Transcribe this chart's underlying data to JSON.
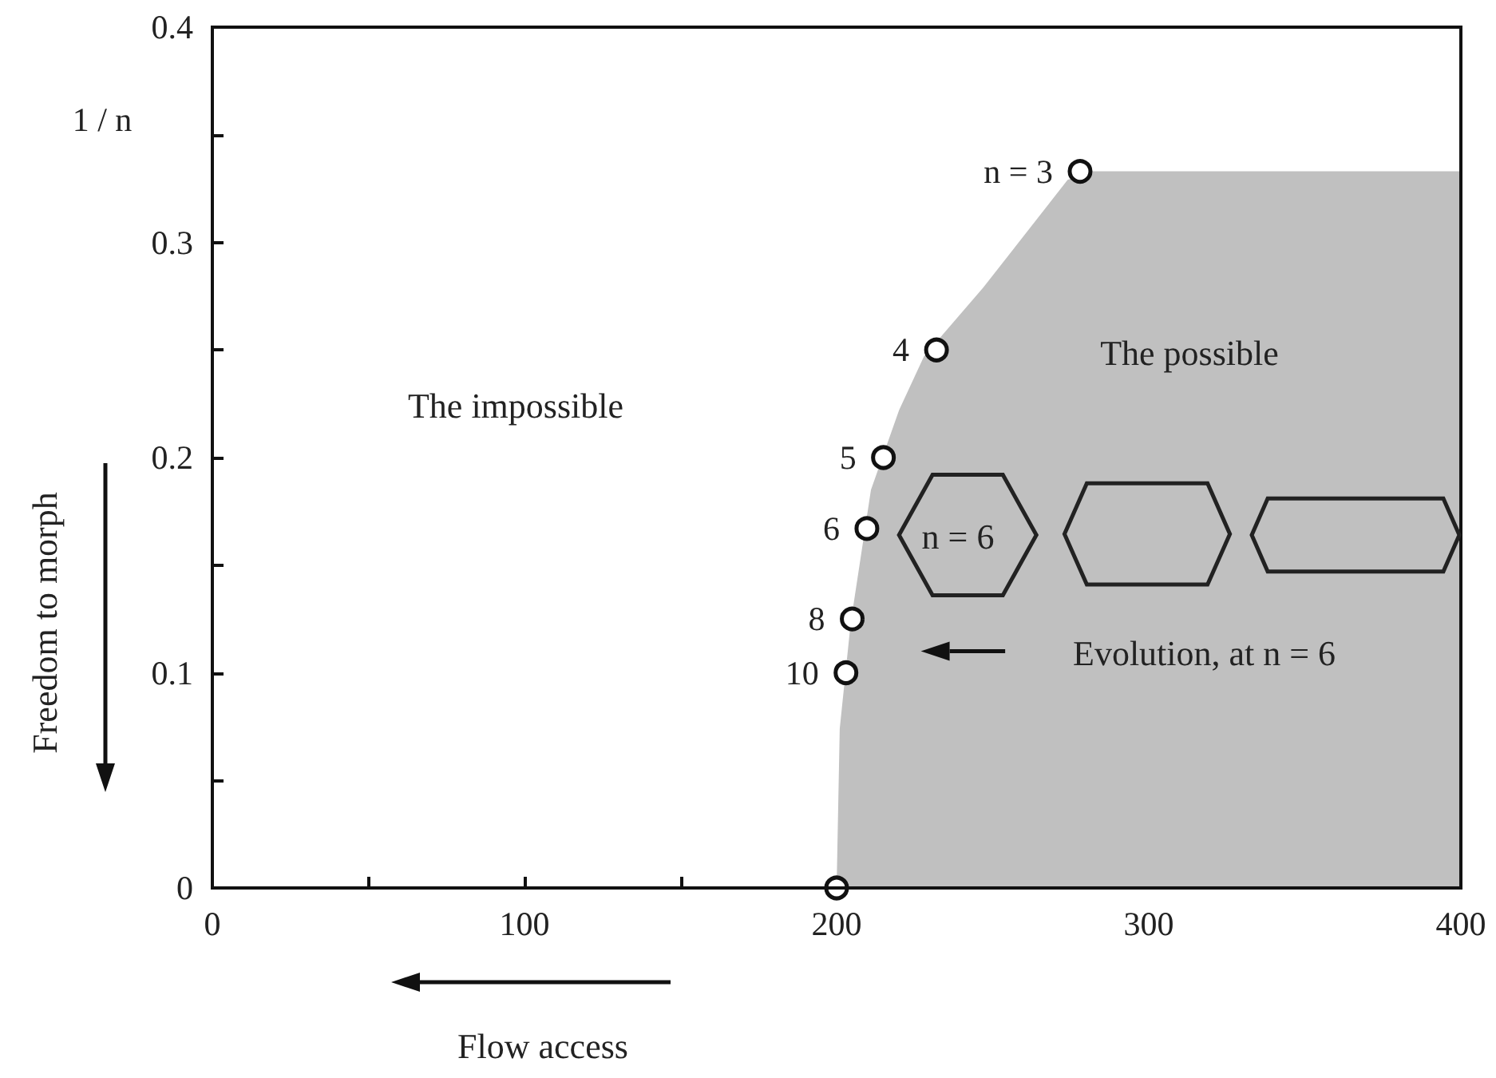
{
  "chart_data": {
    "type": "area",
    "xlabel": "Flow access",
    "ylabel": "1 / n",
    "xlim": [
      0,
      400
    ],
    "xticks": [
      0,
      {
        "value": 50,
        "label": null
      },
      100,
      {
        "value": 150,
        "label": null
      },
      200,
      {
        "value": 250,
        "label": null
      },
      300,
      {
        "value": 350,
        "label": null
      },
      400
    ],
    "ylim": [
      0,
      0.4
    ],
    "yticks": [
      0,
      {
        "value": 0.05,
        "label": null
      },
      0.1,
      {
        "value": 0.15,
        "label": null
      },
      0.2,
      {
        "value": 0.25,
        "label": null
      },
      0.3,
      {
        "value": 0.35,
        "label": null
      },
      0.4
    ],
    "series": [
      {
        "color": "#c0c0c0",
        "x": [
          200,
          201,
          204.5,
          211,
          220,
          228,
          247,
          274,
          281,
          400
        ],
        "values": [
          0,
          0.074,
          0.123,
          0.185,
          0.222,
          0.247,
          0.279,
          0.329,
          0.333,
          0.333
        ]
      },
      {
        "type": "scatter",
        "color": "#ffffff",
        "marker": "circle",
        "x": [
          278,
          232,
          215,
          209.7,
          205,
          203,
          200
        ],
        "values": [
          0.333,
          0.25,
          0.2,
          0.167,
          0.125,
          0.1,
          0
        ]
      }
    ],
    "annotations": [
      {
        "text": "n = 3",
        "x": 278,
        "y": 0.333
      },
      {
        "text": "4",
        "x": 232,
        "y": 0.25
      },
      {
        "text": "5",
        "x": 215,
        "y": 0.2
      },
      {
        "text": "6",
        "x": 209.7,
        "y": 0.167
      },
      {
        "text": "8",
        "x": 205,
        "y": 0.125
      },
      {
        "text": "10",
        "x": 203,
        "y": 0.1
      },
      "The impossible",
      "The possible",
      "n = 6",
      "Evolution, at n = 6",
      "Freedom to morph"
    ],
    "grid": false
  }
}
